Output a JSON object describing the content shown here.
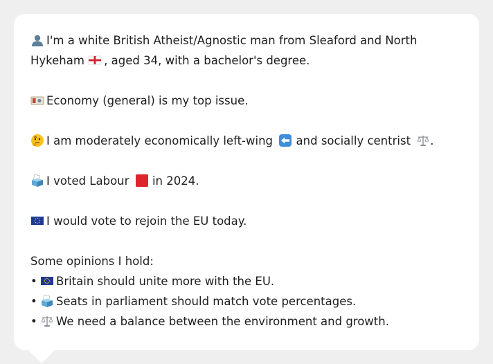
{
  "profile": {
    "line1_a": "I'm a white British Atheist/Agnostic man from Sleaford and North",
    "line1_b_before": "Hykeham",
    "line1_b_after": ", aged 34, with a bachelor's degree.",
    "top_issue": "Economy (general) is my top issue.",
    "stance_a": "I am moderately economically left-wing",
    "stance_b": "and socially centrist",
    "stance_c": ".",
    "vote_a": "I voted Labour",
    "vote_b": "in 2024.",
    "eu": "I would vote to rejoin the EU today."
  },
  "opinions": {
    "heading": "Some opinions I hold:",
    "bullet": "•",
    "items": [
      {
        "icon": "eu-flag-icon",
        "text": "Britain should unite more with the EU."
      },
      {
        "icon": "ballot-box-icon",
        "text": "Seats in parliament should match vote percentages."
      },
      {
        "icon": "balance-scale-icon",
        "text": "We need a balance between the environment and growth."
      }
    ]
  },
  "colors": {
    "bubble_bg": "#ffffff",
    "page_bg": "#efefef",
    "text": "#1e1e1e",
    "labour_red": "#e0242b",
    "eu_blue": "#1f3a93"
  }
}
